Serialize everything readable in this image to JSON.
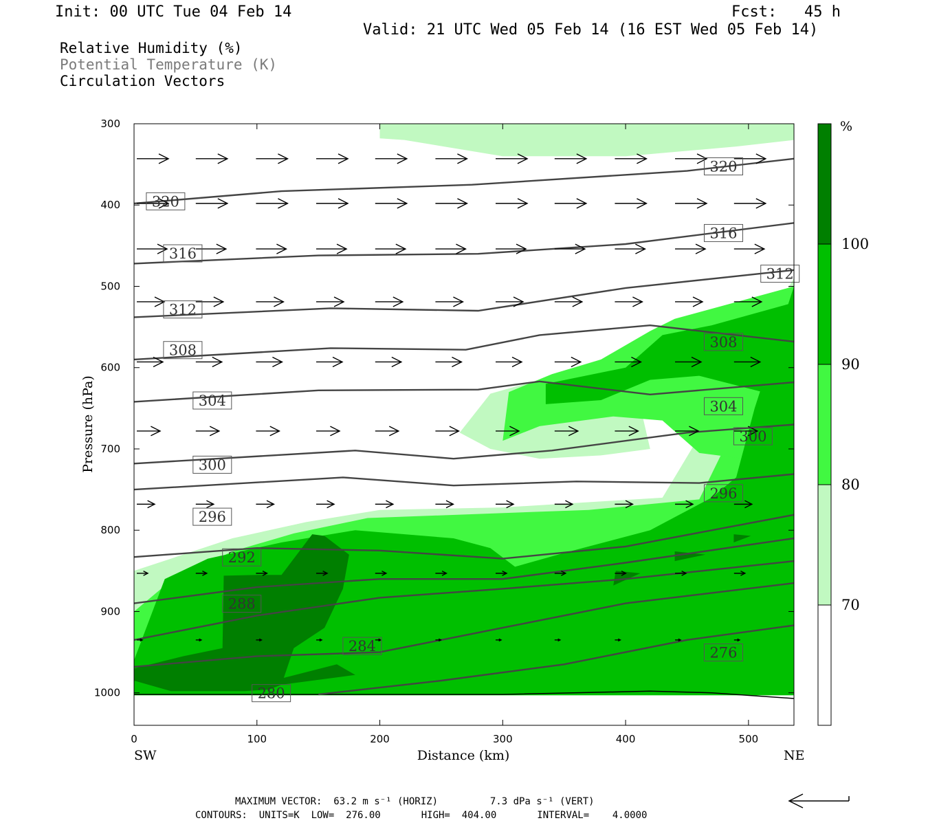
{
  "header": {
    "init": "Init: 00 UTC Tue 04 Feb 14",
    "fcst": "Fcst:   45 h",
    "valid": "Valid: 21 UTC Wed 05 Feb 14 (16 EST Wed 05 Feb 14)"
  },
  "legend": {
    "rh": "Relative Humidity (%)",
    "theta": "Potential Temperature (K)",
    "vectors": "Circulation Vectors"
  },
  "colors": {
    "rh70": "#c1f9c1",
    "rh80": "#41f841",
    "rh90": "#00bf00",
    "rh100": "#007f00",
    "contour": "#444444"
  },
  "footer": {
    "line1": "MAXIMUM VECTOR:  63.2 m s⁻¹ (HORIZ)         7.3 dPa s⁻¹ (VERT)",
    "line2": "CONTOURS:  UNITS=K  LOW=  276.00       HIGH=  404.00       INTERVAL=    4.0000"
  },
  "chart_data": {
    "type": "cross-section",
    "xlabel": "Distance (km)",
    "ylabel": "Pressure (hPa)",
    "xlim": [
      0,
      537
    ],
    "ylim": [
      1040,
      300
    ],
    "x_ticks": [
      0,
      100,
      200,
      300,
      400,
      500
    ],
    "y_ticks": [
      300,
      400,
      500,
      600,
      700,
      800,
      900,
      1000
    ],
    "x_end_left": "SW",
    "x_end_right": "NE",
    "colorbar": {
      "unit": "%",
      "levels": [
        "70",
        "80",
        "90",
        "100"
      ]
    },
    "rh_regions": [
      {
        "level": "rh70",
        "points": [
          [
            200,
            300
          ],
          [
            537,
            300
          ],
          [
            537,
            320
          ],
          [
            490,
            328
          ],
          [
            400,
            340
          ],
          [
            300,
            340
          ],
          [
            220,
            320
          ],
          [
            200,
            318
          ]
        ]
      },
      {
        "level": "rh70",
        "points": [
          [
            0,
            850
          ],
          [
            30,
            835
          ],
          [
            80,
            810
          ],
          [
            140,
            790
          ],
          [
            200,
            775
          ],
          [
            300,
            772
          ],
          [
            430,
            760
          ],
          [
            537,
            490
          ],
          [
            537,
            1003
          ],
          [
            0,
            1003
          ]
        ]
      },
      {
        "level": "rh70",
        "points": [
          [
            265,
            680
          ],
          [
            290,
            632
          ],
          [
            330,
            615
          ],
          [
            380,
            608
          ],
          [
            425,
            600
          ],
          [
            430,
            615
          ],
          [
            410,
            635
          ],
          [
            420,
            700
          ],
          [
            380,
            708
          ],
          [
            330,
            712
          ],
          [
            290,
            700
          ]
        ]
      },
      {
        "level": "rh80",
        "points": [
          [
            0,
            900
          ],
          [
            30,
            862
          ],
          [
            80,
            826
          ],
          [
            130,
            804
          ],
          [
            190,
            785
          ],
          [
            280,
            780
          ],
          [
            370,
            775
          ],
          [
            460,
            762
          ],
          [
            480,
            700
          ],
          [
            500,
            650
          ],
          [
            520,
            560
          ],
          [
            537,
            498
          ],
          [
            537,
            1003
          ],
          [
            0,
            1003
          ]
        ]
      },
      {
        "level": "rh80",
        "points": [
          [
            300,
            690
          ],
          [
            305,
            630
          ],
          [
            340,
            608
          ],
          [
            380,
            590
          ],
          [
            420,
            555
          ],
          [
            440,
            540
          ],
          [
            537,
            500
          ],
          [
            537,
            720
          ],
          [
            460,
            705
          ],
          [
            430,
            665
          ],
          [
            390,
            660
          ],
          [
            330,
            672
          ]
        ]
      },
      {
        "level": "rh90",
        "points": [
          [
            0,
            960
          ],
          [
            25,
            860
          ],
          [
            60,
            835
          ],
          [
            120,
            815
          ],
          [
            180,
            800
          ],
          [
            260,
            810
          ],
          [
            290,
            822
          ],
          [
            310,
            845
          ],
          [
            350,
            828
          ],
          [
            420,
            800
          ],
          [
            470,
            760
          ],
          [
            490,
            735
          ],
          [
            505,
            650
          ],
          [
            537,
            500
          ],
          [
            537,
            1003
          ],
          [
            0,
            1003
          ]
        ]
      },
      {
        "level": "rh90",
        "points": [
          [
            335,
            645
          ],
          [
            335,
            620
          ],
          [
            400,
            600
          ],
          [
            430,
            560
          ],
          [
            470,
            548
          ],
          [
            537,
            520
          ],
          [
            537,
            640
          ],
          [
            460,
            610
          ],
          [
            420,
            615
          ],
          [
            380,
            640
          ]
        ]
      },
      {
        "level": "rh100",
        "points": [
          [
            0,
            970
          ],
          [
            40,
            955
          ],
          [
            72,
            945
          ],
          [
            73,
            856
          ],
          [
            100,
            855
          ],
          [
            120,
            855
          ],
          [
            145,
            805
          ],
          [
            155,
            807
          ],
          [
            175,
            830
          ],
          [
            170,
            872
          ],
          [
            155,
            920
          ],
          [
            130,
            945
          ],
          [
            120,
            990
          ],
          [
            110,
            996
          ],
          [
            90,
            998
          ],
          [
            30,
            998
          ],
          [
            0,
            985
          ]
        ]
      },
      {
        "level": "rh100",
        "points": [
          [
            100,
            990
          ],
          [
            165,
            965
          ],
          [
            180,
            978
          ],
          [
            170,
            980
          ],
          [
            110,
            992
          ]
        ]
      },
      {
        "level": "rh100",
        "points": [
          [
            390,
            868
          ],
          [
            392,
            850
          ],
          [
            412,
            853
          ]
        ]
      },
      {
        "level": "rh100",
        "points": [
          [
            440,
            838
          ],
          [
            440,
            826
          ],
          [
            465,
            830
          ]
        ]
      },
      {
        "level": "rh100",
        "points": [
          [
            488,
            815
          ],
          [
            488,
            805
          ],
          [
            502,
            807
          ]
        ]
      }
    ],
    "theta_contours": [
      {
        "value": "320",
        "label_at": [
          [
            10,
            395
          ],
          [
            464,
            352
          ]
        ],
        "points": [
          [
            0,
            398
          ],
          [
            120,
            383
          ],
          [
            275,
            375
          ],
          [
            450,
            358
          ],
          [
            537,
            343
          ]
        ]
      },
      {
        "value": "316",
        "label_at": [
          [
            24,
            459
          ],
          [
            464,
            434
          ]
        ],
        "points": [
          [
            0,
            472
          ],
          [
            150,
            462
          ],
          [
            280,
            460
          ],
          [
            400,
            448
          ],
          [
            537,
            422
          ]
        ]
      },
      {
        "value": "312",
        "label_at": [
          [
            24,
            528
          ],
          [
            510,
            484
          ]
        ],
        "points": [
          [
            0,
            538
          ],
          [
            160,
            527
          ],
          [
            280,
            530
          ],
          [
            400,
            502
          ],
          [
            537,
            480
          ]
        ]
      },
      {
        "value": "308",
        "label_at": [
          [
            24,
            578
          ],
          [
            464,
            568
          ]
        ],
        "points": [
          [
            0,
            590
          ],
          [
            160,
            576
          ],
          [
            270,
            578
          ],
          [
            330,
            560
          ],
          [
            420,
            548
          ],
          [
            537,
            568
          ]
        ]
      },
      {
        "value": "304",
        "label_at": [
          [
            48,
            640
          ],
          [
            464,
            647
          ]
        ],
        "points": [
          [
            0,
            642
          ],
          [
            150,
            628
          ],
          [
            280,
            627
          ],
          [
            330,
            617
          ],
          [
            420,
            633
          ],
          [
            537,
            618
          ]
        ]
      },
      {
        "value": "300",
        "label_at": [
          [
            48,
            719
          ],
          [
            488,
            684
          ]
        ],
        "points": [
          [
            0,
            718
          ],
          [
            180,
            702
          ],
          [
            260,
            712
          ],
          [
            340,
            702
          ],
          [
            450,
            680
          ],
          [
            537,
            670
          ]
        ]
      },
      {
        "value": "296",
        "label_at": [
          [
            48,
            783
          ],
          [
            464,
            754
          ]
        ],
        "points": [
          [
            0,
            750
          ],
          [
            170,
            735
          ],
          [
            260,
            745
          ],
          [
            360,
            740
          ],
          [
            460,
            742
          ],
          [
            537,
            731
          ]
        ]
      },
      {
        "value": "292",
        "label_at": [
          [
            72,
            833
          ]
        ],
        "points": [
          [
            0,
            833
          ],
          [
            100,
            822
          ],
          [
            200,
            825
          ],
          [
            300,
            835
          ],
          [
            400,
            820
          ],
          [
            537,
            781
          ]
        ]
      },
      {
        "value": "288",
        "label_at": [
          [
            72,
            890
          ]
        ],
        "points": [
          [
            0,
            890
          ],
          [
            100,
            870
          ],
          [
            200,
            860
          ],
          [
            300,
            860
          ],
          [
            400,
            840
          ],
          [
            537,
            810
          ]
        ]
      },
      {
        "value": "284",
        "label_at": [
          [
            170,
            942
          ]
        ],
        "points": [
          [
            0,
            935
          ],
          [
            100,
            905
          ],
          [
            200,
            883
          ],
          [
            300,
            872
          ],
          [
            400,
            860
          ],
          [
            537,
            838
          ]
        ]
      },
      {
        "value": "280",
        "label_at": [
          [
            96,
            1000
          ]
        ],
        "points": [
          [
            0,
            968
          ],
          [
            100,
            955
          ],
          [
            200,
            950
          ],
          [
            300,
            920
          ],
          [
            400,
            890
          ],
          [
            537,
            865
          ]
        ]
      },
      {
        "value": "276",
        "label_at": [
          [
            464,
            950
          ]
        ],
        "points": [
          [
            150,
            1002
          ],
          [
            250,
            985
          ],
          [
            350,
            965
          ],
          [
            450,
            935
          ],
          [
            537,
            917
          ]
        ]
      }
    ],
    "surface_line": [
      [
        0,
        1002
      ],
      [
        150,
        1002
      ],
      [
        300,
        1002
      ],
      [
        420,
        998
      ],
      [
        470,
        1000
      ],
      [
        537,
        1007
      ]
    ],
    "vector_rows": [
      {
        "p": 343,
        "len": 46
      },
      {
        "p": 398,
        "len": 46
      },
      {
        "p": 454,
        "len": 44
      },
      {
        "p": 519,
        "len": 40
      },
      {
        "p": 593,
        "len": 38
      },
      {
        "p": 678,
        "len": 34
      },
      {
        "p": 768,
        "len": 26
      },
      {
        "p": 853,
        "len": 16
      },
      {
        "p": 935,
        "len": 8
      }
    ],
    "vector_x": [
      0,
      48,
      97,
      146,
      194,
      243,
      292,
      340,
      389,
      438,
      486
    ],
    "max_vector_note": "reference"
  }
}
